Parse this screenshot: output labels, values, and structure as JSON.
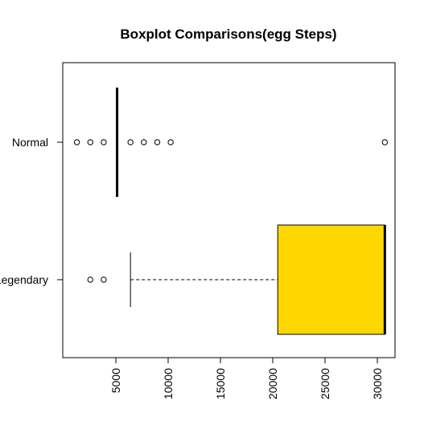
{
  "chart_data": {
    "type": "boxplot",
    "orientation": "horizontal",
    "title": "Boxplot Comparisons(egg Steps)",
    "xlabel": "",
    "ylabel": "",
    "xlim": [
      0,
      31500
    ],
    "xticks": [
      5000,
      10000,
      15000,
      20000,
      25000,
      30000
    ],
    "xtick_labels": [
      "5000",
      "10000",
      "15000",
      "20000",
      "25000",
      "30000"
    ],
    "categories": [
      "Normal",
      "Legendary"
    ],
    "series": [
      {
        "category": "Normal",
        "whisker_low": 5120,
        "q1": 5120,
        "median": 5120,
        "q3": 5120,
        "whisker_high": 5120,
        "outliers": [
          1280,
          2560,
          3840,
          6400,
          7680,
          8960,
          10240,
          30720
        ],
        "fill": "#FFD700"
      },
      {
        "category": "Legendary",
        "whisker_low": 6400,
        "q1": 20480,
        "median": 30720,
        "q3": 30720,
        "whisker_high": 30720,
        "outliers": [
          2560,
          3840
        ],
        "fill": "#FFD700"
      }
    ]
  }
}
